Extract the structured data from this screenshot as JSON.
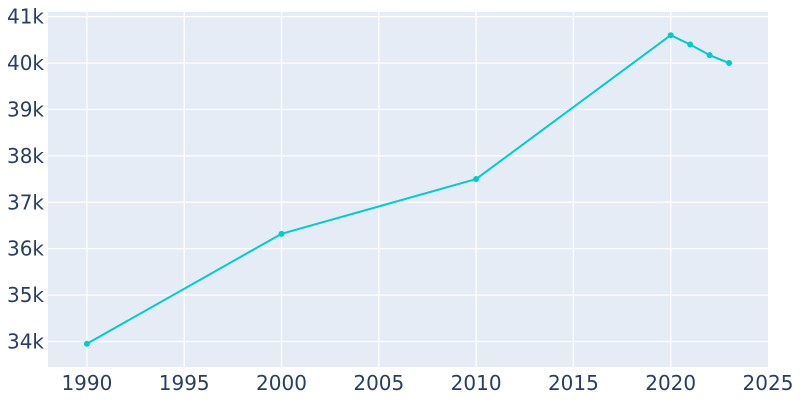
{
  "colors": {
    "plot_background": "#e5ecf6",
    "grid": "#ffffff",
    "line": "#00cccc",
    "text": "#2a3f5f"
  },
  "chart_data": {
    "type": "line",
    "title": "",
    "xlabel": "",
    "ylabel": "",
    "grid": true,
    "legend": "none",
    "xlim": [
      1988,
      2025
    ],
    "ylim": [
      33450,
      41100
    ],
    "x_ticks": [
      1990,
      1995,
      2000,
      2005,
      2010,
      2015,
      2020,
      2025
    ],
    "x_tick_labels": [
      "1990",
      "1995",
      "2000",
      "2005",
      "2010",
      "2015",
      "2020",
      "2025"
    ],
    "y_ticks": [
      34000,
      35000,
      36000,
      37000,
      38000,
      39000,
      40000,
      41000
    ],
    "y_tick_labels": [
      "34k",
      "35k",
      "36k",
      "37k",
      "38k",
      "39k",
      "40k",
      "41k"
    ],
    "series": [
      {
        "x": [
          1990,
          2000,
          2010,
          2020,
          2021,
          2022,
          2023
        ],
        "y": [
          33950,
          36320,
          37500,
          40600,
          40400,
          40170,
          40000
        ]
      }
    ]
  }
}
